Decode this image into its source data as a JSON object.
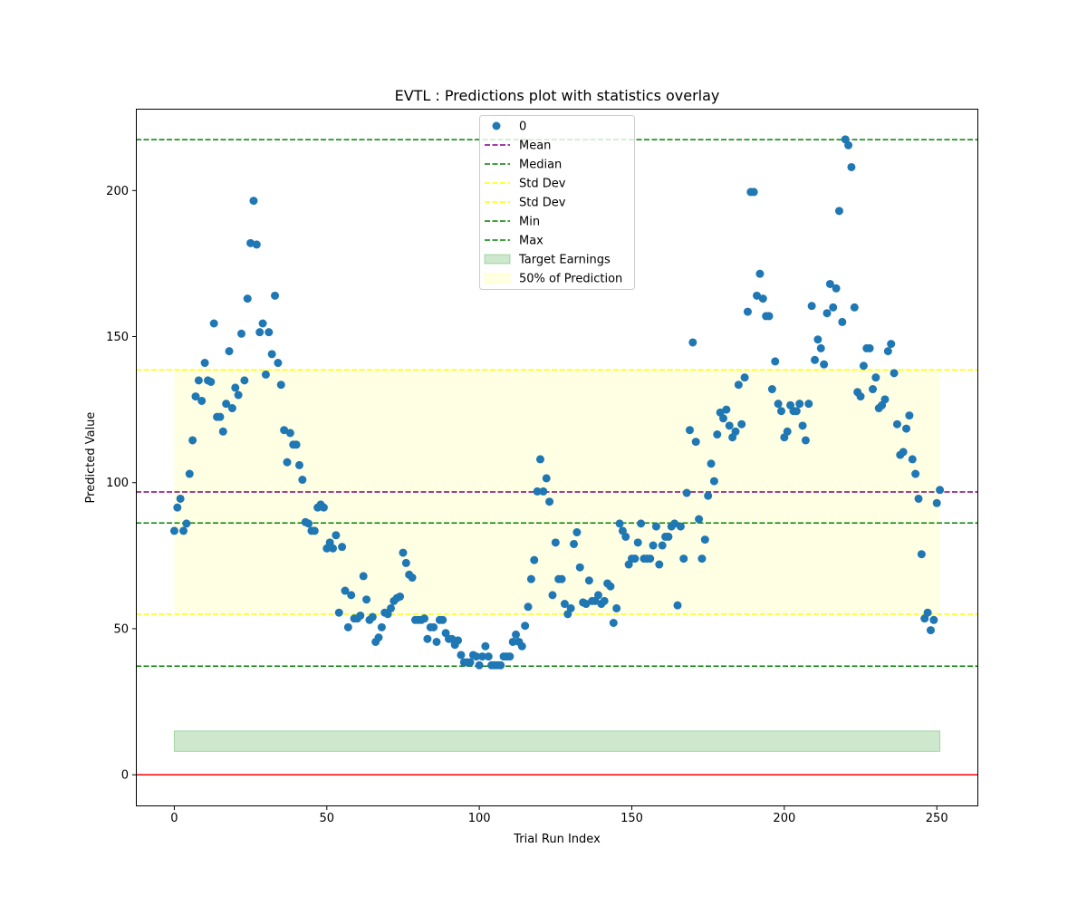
{
  "chart_data": {
    "type": "scatter",
    "title": "EVTL : Predictions plot with statistics overlay",
    "xlabel": "Trial Run Index",
    "ylabel": "Predicted Value",
    "xlim": [
      -12.6,
      263.6
    ],
    "ylim": [
      -10.8,
      228
    ],
    "xticks": [
      0,
      50,
      100,
      150,
      200,
      250
    ],
    "yticks": [
      0,
      50,
      100,
      150,
      200
    ],
    "grid": false,
    "legend_position": "upper center",
    "series": [
      {
        "name": "0",
        "color": "#1f77b4",
        "x_start": 0,
        "values": [
          83.5,
          91.5,
          94.5,
          83.5,
          86,
          103,
          114.5,
          129.5,
          135,
          128,
          141,
          135,
          134.5,
          154.5,
          122.5,
          122.5,
          117.5,
          127,
          145,
          125.5,
          132.5,
          130,
          151,
          135,
          163,
          182,
          196.5,
          181.5,
          151.5,
          154.5,
          137,
          151.5,
          144,
          164,
          141,
          133.5,
          118,
          107,
          117,
          113,
          113,
          106,
          101,
          86.5,
          86,
          83.5,
          83.5,
          91.5,
          92.5,
          91.5,
          77.5,
          79.5,
          77.5,
          82,
          55.5,
          78,
          63,
          50.5,
          61.5,
          53.5,
          53.5,
          54.5,
          68,
          60,
          53,
          54,
          45.5,
          47,
          50.5,
          55.5,
          55,
          57,
          59.5,
          60.5,
          61,
          76,
          72.5,
          68.5,
          67.5,
          53,
          53,
          53,
          53.5,
          46.5,
          50.5,
          50.5,
          45.5,
          53,
          53,
          48.5,
          46.5,
          46.5,
          44.5,
          46,
          41,
          38.5,
          38.5,
          38.5,
          41,
          40.5,
          37.5,
          40.5,
          44,
          40.5,
          37.5,
          37.5,
          37.5,
          37.5,
          40.5,
          40.5,
          40.5,
          45.5,
          48,
          45.5,
          44,
          51,
          57.5,
          67,
          73.5,
          97,
          108,
          97,
          101.5,
          93.5,
          61.5,
          79.5,
          67,
          67,
          58.5,
          55,
          57,
          79,
          83,
          71,
          59,
          58.5,
          66.5,
          59.5,
          59.5,
          61.5,
          58.5,
          59.5,
          65.5,
          64.5,
          52,
          57,
          86,
          83.5,
          81.5,
          72,
          74,
          74,
          79.5,
          86,
          74,
          74,
          74,
          78.5,
          85,
          72,
          78.5,
          81.5,
          81.5,
          85,
          86,
          58,
          85,
          74,
          96.5,
          118,
          148,
          114,
          87.5,
          74,
          80.5,
          95.5,
          106.5,
          100.5,
          116.5,
          124,
          122,
          125,
          119.5,
          115.5,
          117.5,
          133.5,
          120,
          136,
          158.5,
          199.5,
          199.5,
          164,
          171.5,
          163,
          157,
          157,
          132,
          141.5,
          127,
          124.5,
          115.5,
          117.5,
          126.5,
          124.5,
          124.5,
          127,
          119.5,
          114.5,
          127,
          160.5,
          142,
          149,
          146,
          140.5,
          158,
          168,
          160,
          166.5,
          193,
          155,
          217.5,
          215.5,
          208,
          160,
          131,
          129.5,
          140,
          146,
          146,
          132,
          136,
          125.5,
          126.5,
          128.5,
          145,
          147.5,
          137.5,
          120,
          109.5,
          110.5,
          118.5,
          123,
          108,
          103,
          94.5,
          75.5,
          53.5,
          55.5,
          49.5,
          53,
          93,
          97.5
        ]
      }
    ],
    "reference_lines": [
      {
        "name": "Mean",
        "value": 96.8,
        "color": "#800080",
        "style": "dashed"
      },
      {
        "name": "Median",
        "value": 86.2,
        "color": "#008000",
        "style": "dashed"
      },
      {
        "name": "Std Dev",
        "value": 138.6,
        "color": "#ffff00",
        "style": "dashed"
      },
      {
        "name": "Std Dev",
        "value": 55.0,
        "color": "#ffff00",
        "style": "dashed"
      },
      {
        "name": "Min",
        "value": 37.2,
        "color": "#008000",
        "style": "dashed"
      },
      {
        "name": "Max",
        "value": 217.4,
        "color": "#008000",
        "style": "dashed"
      }
    ],
    "zero_line": {
      "value": 0,
      "color": "#ff0000"
    },
    "bands": [
      {
        "name": "Target Earnings",
        "x_range": [
          0,
          251
        ],
        "y_range": [
          8,
          15
        ],
        "color": "#2ca02c",
        "opacity": 0.24
      },
      {
        "name": "50% of Prediction",
        "x_range": [
          0,
          251
        ],
        "y_range": [
          55.0,
          138.6
        ],
        "color": "#ffff66",
        "opacity": 0.18
      }
    ]
  }
}
